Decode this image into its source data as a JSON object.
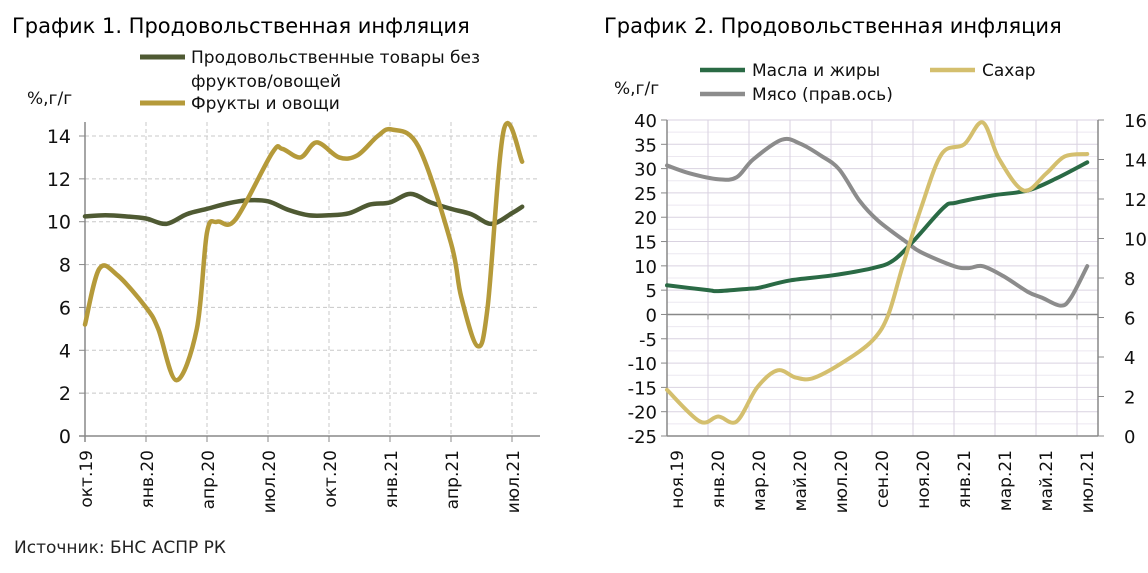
{
  "source": "Источник: БНС АСПР РК",
  "chart_data": [
    {
      "type": "line",
      "title": "График 1. Продовольственная инфляция",
      "ylabel": "%,г/г",
      "ylim": [
        0,
        14
      ],
      "yticks": [
        "0",
        "2",
        "4",
        "6",
        "8",
        "10",
        "12",
        "14"
      ],
      "x_unit": "months since окт.19",
      "xticks": [
        "окт.19",
        "янв.20",
        "апр.20",
        "июл.20",
        "окт.20",
        "янв.21",
        "апр.21",
        "июл.21"
      ],
      "grid": true,
      "legend": "top",
      "series": [
        {
          "name": "Продовольственные товары без фруктов/овощей",
          "color": "#4f5a33",
          "x": [
            0,
            1,
            2,
            3,
            4,
            5,
            6,
            7,
            8,
            9,
            10,
            11,
            12,
            13,
            14,
            15,
            16,
            17,
            18,
            19,
            20,
            21,
            21.5
          ],
          "y": [
            10.25,
            10.3,
            10.25,
            10.15,
            9.9,
            10.35,
            10.6,
            10.85,
            11.0,
            10.95,
            10.55,
            10.3,
            10.3,
            10.4,
            10.8,
            10.9,
            11.3,
            10.9,
            10.6,
            10.35,
            9.9,
            10.4,
            10.7
          ]
        },
        {
          "name": "Фрукты и овощи",
          "color": "#b59a3a",
          "x": [
            0,
            0.7,
            1.6,
            3,
            3.6,
            4.5,
            5.5,
            6,
            6.5,
            7.4,
            9.2,
            9.7,
            10.6,
            11.4,
            12.5,
            13.4,
            14.4,
            15.1,
            16.4,
            18,
            18.5,
            19.3,
            19.8,
            20.6,
            21.5
          ],
          "y": [
            5.2,
            7.8,
            7.5,
            6,
            5,
            2.6,
            5,
            9.5,
            10,
            10.1,
            13.2,
            13.4,
            13,
            13.7,
            13,
            13.1,
            14,
            14.3,
            13.5,
            9,
            6.5,
            4.2,
            6,
            14.3,
            12.8
          ]
        }
      ]
    },
    {
      "type": "line",
      "title": "График 2. Продовольственная инфляция",
      "ylabel": "%,г/г",
      "ylim": [
        -25,
        40
      ],
      "y2lim": [
        0,
        16
      ],
      "yticks": [
        "40",
        "35",
        "30",
        "25",
        "20",
        "15",
        "10",
        "5",
        "0",
        "-5",
        "-10",
        "-15",
        "-20",
        "-25"
      ],
      "y2ticks": [
        "16",
        "14",
        "12",
        "10",
        "8",
        "6",
        "4",
        "2",
        "0"
      ],
      "x_unit": "months since ноя.19",
      "xticks": [
        "ноя.19",
        "янв.20",
        "мар.20",
        "май.20",
        "июл.20",
        "сен.20",
        "ноя.20",
        "янв.21",
        "мар.21",
        "май.21",
        "июл.21"
      ],
      "grid": true,
      "legend": "top",
      "series": [
        {
          "name": "Масла и жиры",
          "color": "#2a6a45",
          "axis": "left",
          "x": [
            0,
            2,
            2.5,
            4,
            4.5,
            6,
            8,
            10,
            11,
            12,
            13.5,
            14.1,
            15.9,
            17.6,
            19,
            20.5
          ],
          "y": [
            6,
            5,
            4.8,
            5.3,
            5.5,
            7,
            8,
            9.5,
            11,
            15,
            22,
            23,
            24.5,
            25.5,
            28,
            31.3
          ]
        },
        {
          "name": "Сахар",
          "color": "#d4bf6e",
          "axis": "left",
          "x": [
            0,
            1.6,
            2.5,
            3.4,
            4.4,
            5.4,
            6.3,
            7.2,
            8.9,
            10.1,
            10.8,
            11.5,
            12.4,
            13.4,
            14.5,
            15.4,
            16.2,
            17.4,
            18.5,
            19.4,
            20.5
          ],
          "y": [
            -15.5,
            -22,
            -21,
            -22,
            -15,
            -11.5,
            -13,
            -13,
            -9,
            -5,
            0,
            10,
            22,
            33,
            35,
            39.5,
            32,
            25.5,
            29,
            32.5,
            33
          ]
        },
        {
          "name": "Мясо (прав.ось)",
          "color": "#8c8c8c",
          "axis": "right",
          "x": [
            0,
            1.1,
            2.5,
            3.4,
            4.2,
            5.6,
            6.5,
            7.5,
            8.4,
            9.4,
            10.3,
            11.7,
            12.4,
            14,
            14.7,
            15.4,
            16.4,
            17.6,
            18.3,
            19.2,
            19.7,
            20.5
          ],
          "y": [
            13.7,
            13.3,
            13.0,
            13.1,
            14,
            15,
            14.8,
            14.2,
            13.5,
            11.9,
            10.9,
            9.8,
            9.3,
            8.6,
            8.5,
            8.6,
            8.1,
            7.3,
            7.0,
            6.6,
            7.0,
            8.6
          ]
        }
      ]
    }
  ]
}
